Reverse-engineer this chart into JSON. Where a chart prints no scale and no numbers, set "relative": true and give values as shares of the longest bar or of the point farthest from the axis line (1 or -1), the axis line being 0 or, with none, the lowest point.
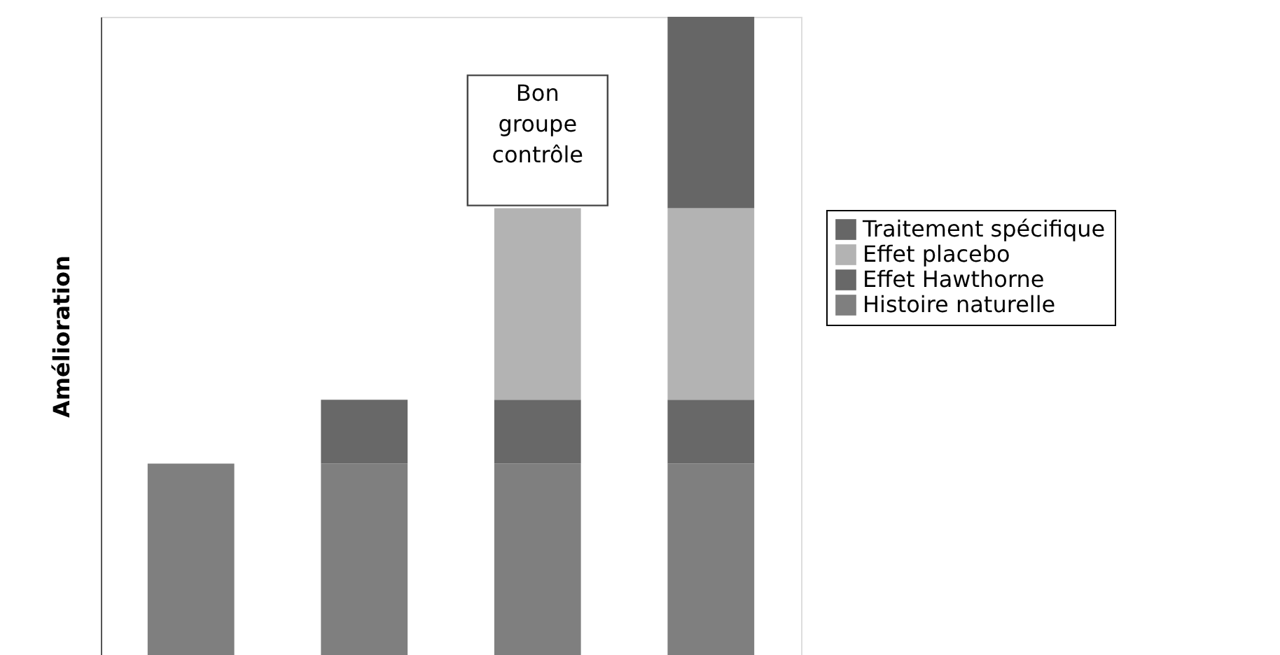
{
  "chart_data": {
    "type": "bar",
    "stacked": true,
    "relative": true,
    "ylabel": "Amélioration",
    "categories": [
      null,
      null,
      null,
      null
    ],
    "series": [
      {
        "name": "Histoire naturelle",
        "color": "#7f7f7f",
        "values": [
          0.3,
          0.3,
          0.3,
          0.3
        ]
      },
      {
        "name": "Effet Hawthorne",
        "color": "#686868",
        "values": [
          null,
          0.1,
          0.1,
          0.1
        ]
      },
      {
        "name": "Effet placebo",
        "color": "#b3b3b3",
        "values": [
          null,
          null,
          0.3,
          0.3
        ]
      },
      {
        "name": "Traitement spécifique",
        "color": "#666666",
        "values": [
          null,
          null,
          null,
          0.3
        ]
      }
    ],
    "annotations": [
      {
        "text": "Bon groupe contrôle",
        "y": 0.7
      }
    ],
    "legend": "right",
    "grid": false
  }
}
